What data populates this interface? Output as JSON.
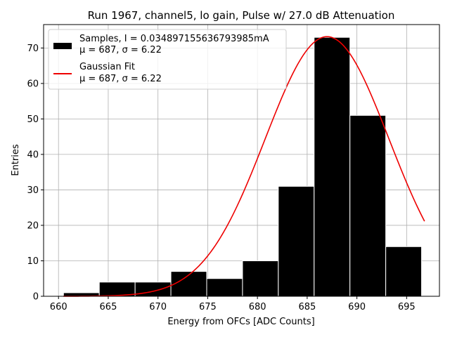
{
  "chart_data": {
    "type": "bar",
    "title": "Run 1967, channel5, lo gain, Pulse w/ 27.0 dB Attenuation",
    "xlabel": "Energy from OFCs [ADC Counts]",
    "ylabel": "Entries",
    "xlim": [
      658.5,
      698.3
    ],
    "ylim": [
      0,
      76.6
    ],
    "xticks": [
      660,
      665,
      670,
      675,
      680,
      685,
      690,
      695
    ],
    "yticks": [
      0,
      10,
      20,
      30,
      40,
      50,
      60,
      70
    ],
    "grid": true,
    "legend_position": "top-left",
    "histogram": {
      "name": "Samples, I = 0.034897155636793985mA",
      "stats": "μ = 687, σ = 6.22",
      "color": "#000000",
      "edge_color": "#ffffff",
      "bins": [
        {
          "left": 660.5,
          "right": 664.1,
          "count": 1
        },
        {
          "left": 664.1,
          "right": 667.7,
          "count": 4
        },
        {
          "left": 667.7,
          "right": 671.3,
          "count": 4
        },
        {
          "left": 671.3,
          "right": 674.9,
          "count": 7
        },
        {
          "left": 674.9,
          "right": 678.5,
          "count": 5
        },
        {
          "left": 678.5,
          "right": 682.1,
          "count": 10
        },
        {
          "left": 682.1,
          "right": 685.7,
          "count": 31
        },
        {
          "left": 685.7,
          "right": 689.3,
          "count": 73
        },
        {
          "left": 689.3,
          "right": 692.9,
          "count": 51
        },
        {
          "left": 692.9,
          "right": 696.5,
          "count": 14
        }
      ]
    },
    "fit": {
      "name": "Gaussian Fit",
      "stats": "μ = 687, σ = 6.22",
      "color": "#ee0000",
      "amplitude": 73.2,
      "mean": 687.0,
      "sigma": 6.22,
      "x_start": 660.5,
      "x_end": 696.8
    }
  }
}
